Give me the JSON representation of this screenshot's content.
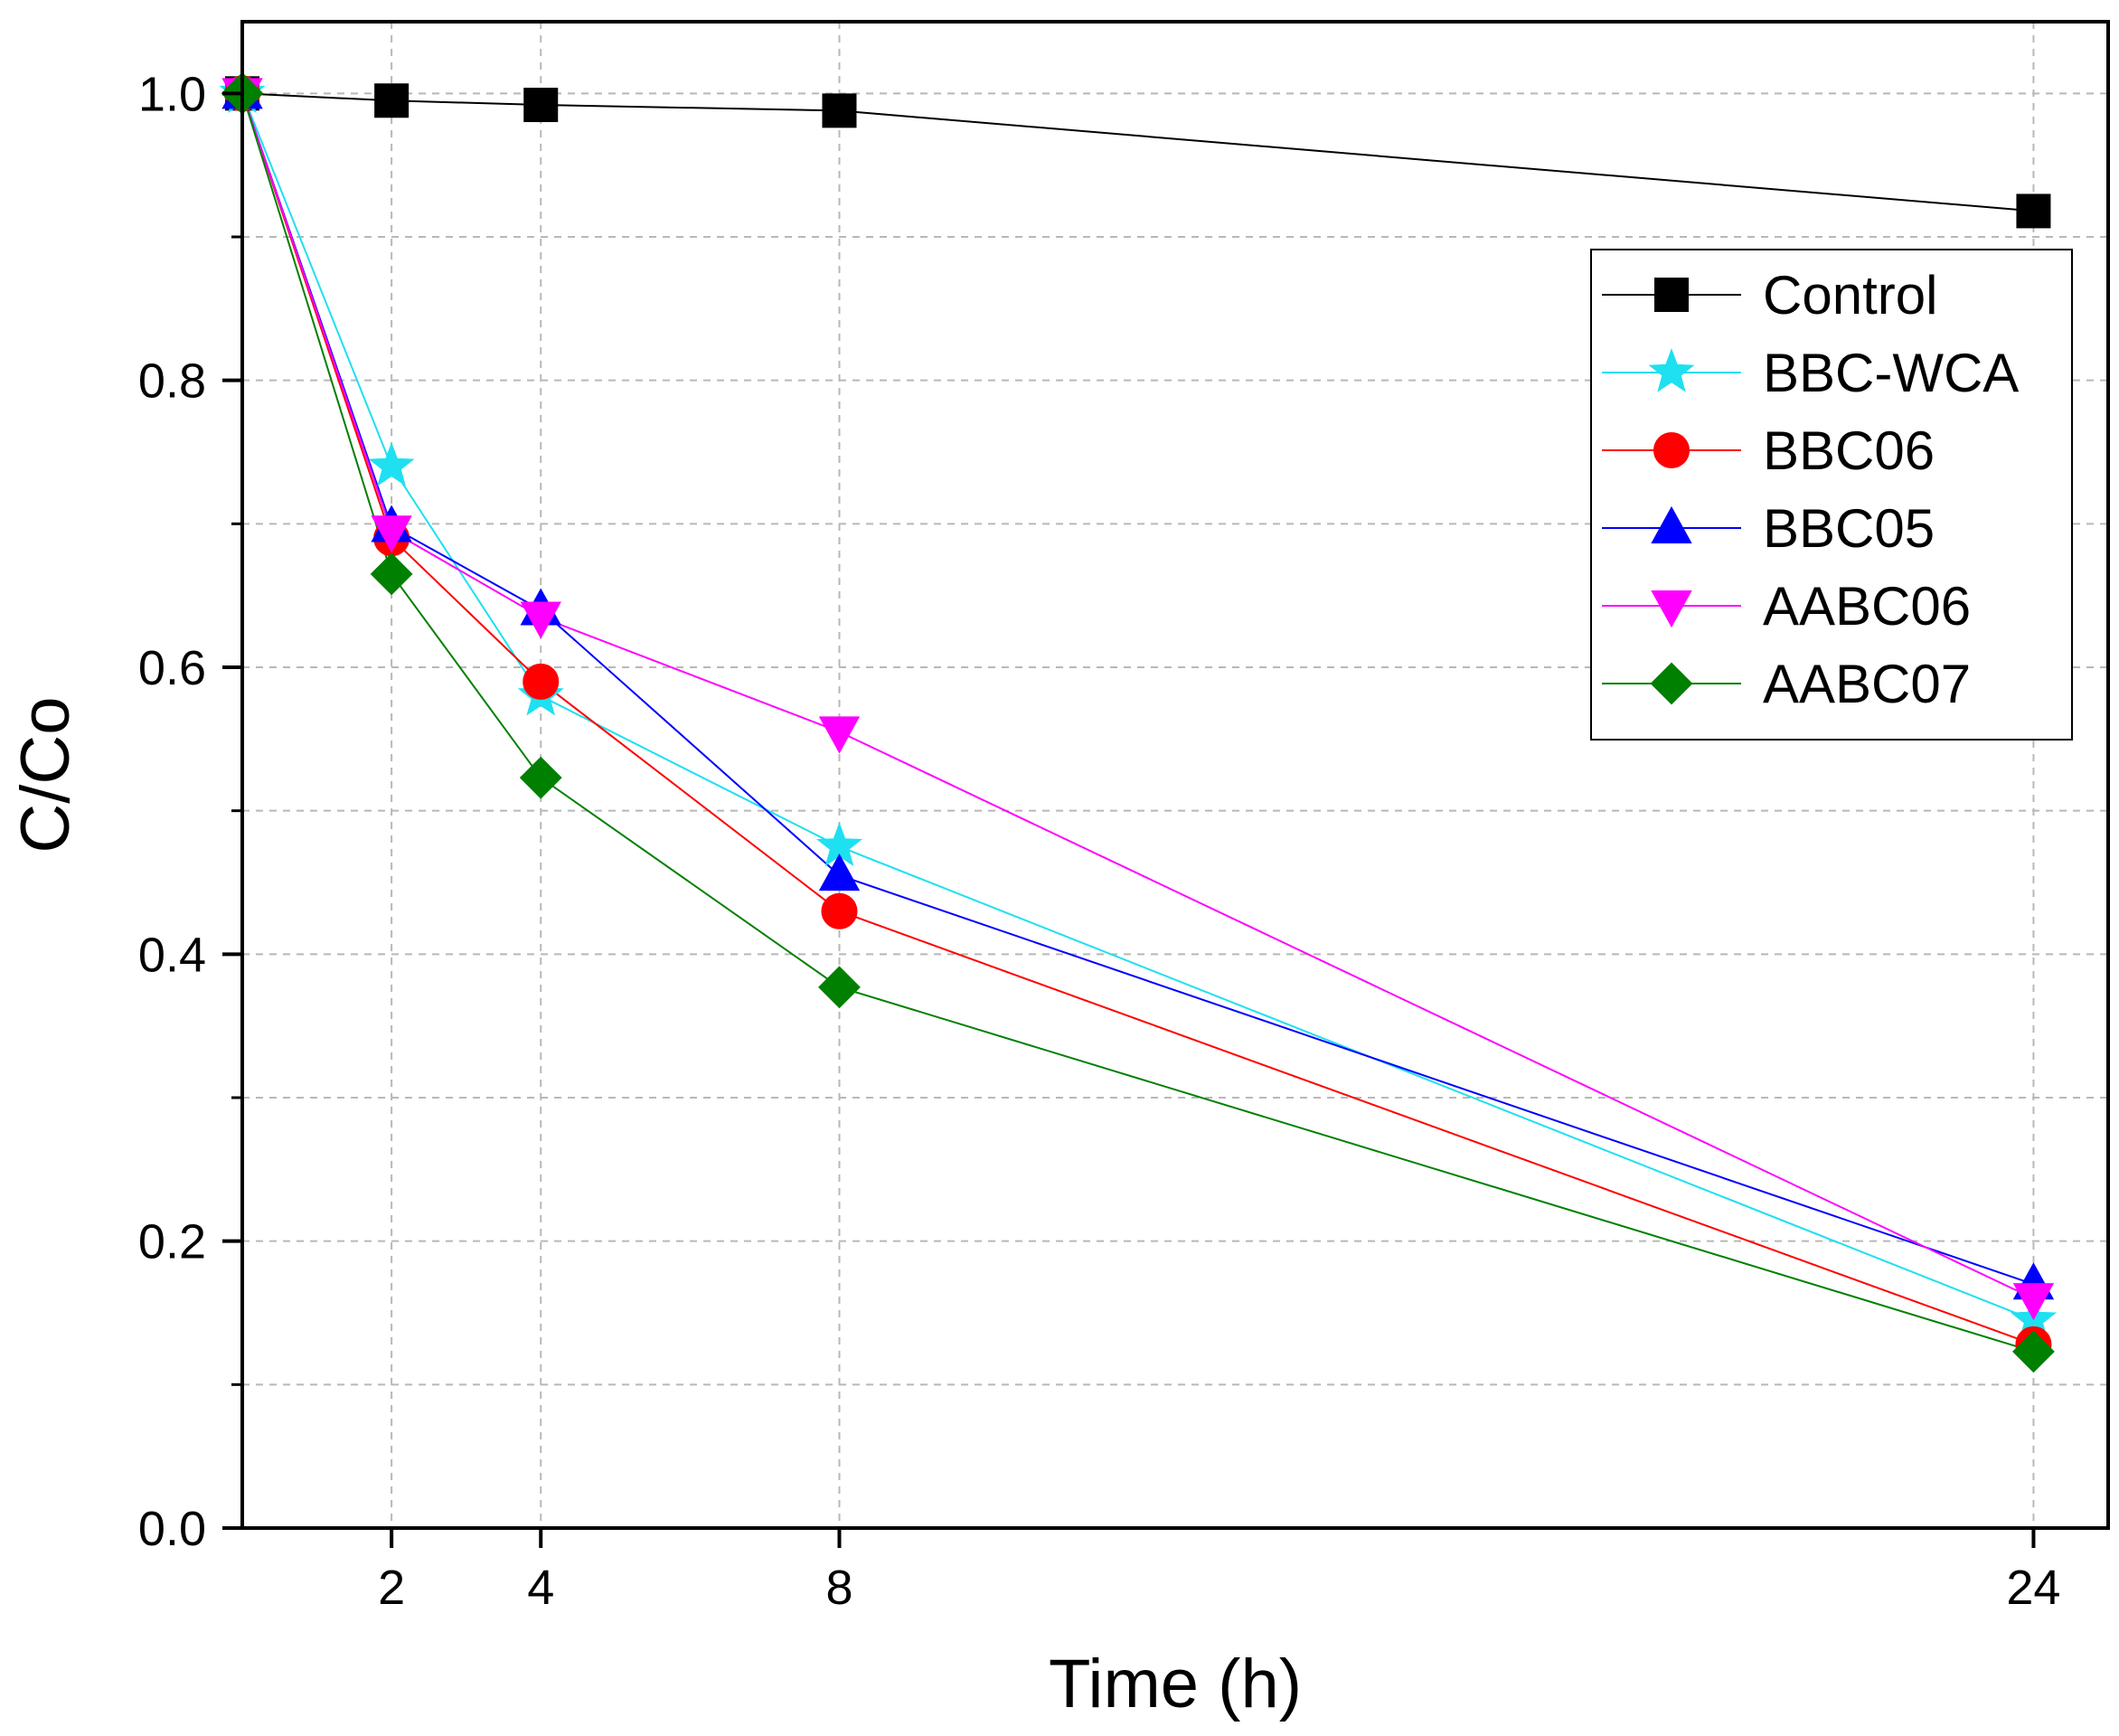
{
  "chart_data": {
    "type": "line",
    "xlabel": "Time (h)",
    "ylabel": "C/Co",
    "xlim": [
      0,
      25
    ],
    "ylim": [
      0,
      1.05
    ],
    "x_ticks": [
      2,
      4,
      8,
      24
    ],
    "y_ticks": [
      0.0,
      0.2,
      0.4,
      0.6,
      0.8,
      1.0
    ],
    "y_tick_labels": [
      "0.0",
      "0.2",
      "0.4",
      "0.6",
      "0.8",
      "1.0"
    ],
    "grid": true,
    "legend_position": "top-right",
    "x": [
      0,
      2,
      4,
      8,
      24
    ],
    "series": [
      {
        "name": "Control",
        "marker": "square",
        "color": "#000000",
        "values": [
          1.0,
          0.995,
          0.992,
          0.988,
          0.918
        ]
      },
      {
        "name": "BBC-WCA",
        "marker": "star",
        "color": "#1ee0f0",
        "values": [
          1.0,
          0.74,
          0.58,
          0.475,
          0.145
        ]
      },
      {
        "name": "BBC06",
        "marker": "circle",
        "color": "#ff0000",
        "values": [
          1.0,
          0.69,
          0.59,
          0.43,
          0.128
        ]
      },
      {
        "name": "BBC05",
        "marker": "triangle-up",
        "color": "#0000ff",
        "values": [
          1.0,
          0.698,
          0.64,
          0.455,
          0.17
        ]
      },
      {
        "name": "AABC06",
        "marker": "triangle-down",
        "color": "#ff00ff",
        "values": [
          1.0,
          0.695,
          0.635,
          0.555,
          0.16
        ]
      },
      {
        "name": "AABC07",
        "marker": "diamond",
        "color": "#008000",
        "values": [
          1.0,
          0.665,
          0.523,
          0.377,
          0.123
        ]
      }
    ]
  }
}
